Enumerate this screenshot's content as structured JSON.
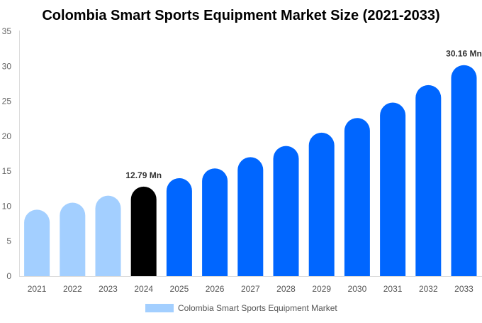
{
  "chart_data": {
    "type": "bar",
    "title": "Colombia Smart Sports Equipment Market Size (2021-2033)",
    "xlabel": "",
    "ylabel": "",
    "ylim": [
      0,
      35
    ],
    "yticks": [
      0,
      5,
      10,
      15,
      20,
      25,
      30,
      35
    ],
    "grid": false,
    "legend_position": "bottom",
    "categories": [
      "2021",
      "2022",
      "2023",
      "2024",
      "2025",
      "2026",
      "2027",
      "2028",
      "2029",
      "2030",
      "2031",
      "2032",
      "2033"
    ],
    "series": [
      {
        "name": "Colombia Smart Sports Equipment Market",
        "values": [
          9.5,
          10.5,
          11.5,
          12.79,
          14.0,
          15.4,
          17.0,
          18.6,
          20.5,
          22.6,
          24.8,
          27.3,
          30.16
        ]
      }
    ],
    "bar_colors": {
      "historical": "#a3cfff",
      "base_year": "#000000",
      "forecast": "#0066ff"
    },
    "bar_color_groups": [
      "historical",
      "historical",
      "historical",
      "base_year",
      "forecast",
      "forecast",
      "forecast",
      "forecast",
      "forecast",
      "forecast",
      "forecast",
      "forecast",
      "forecast"
    ],
    "data_labels": [
      {
        "category": "2024",
        "text": "12.79 Mn"
      },
      {
        "category": "2033",
        "text": "30.16 Mn"
      }
    ]
  }
}
